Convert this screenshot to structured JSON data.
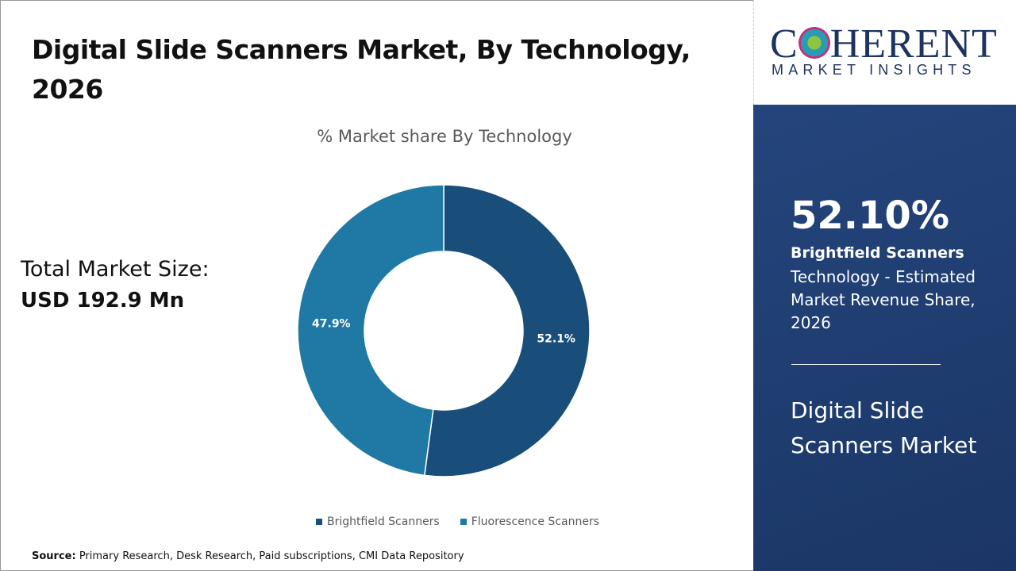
{
  "title": "Digital Slide Scanners Market, By Technology, 2026",
  "total_market": {
    "label": "Total Market Size:",
    "value": "USD 192.9 Mn"
  },
  "source": {
    "label": "Source:",
    "text": " Primary Research, Desk Research, Paid subscriptions, CMI Data Repository"
  },
  "logo": {
    "line1": "COHERENT",
    "line2": "MARKET INSIGHTS"
  },
  "panel": {
    "percent": "52.10%",
    "segment": "Brightfield Scanners",
    "description": "Technology - Estimated Market Revenue Share, 2026",
    "market": "Digital Slide Scanners Market"
  },
  "chart_data": {
    "type": "donut",
    "title": "% Market share By Technology",
    "categories": [
      "Brightfield Scanners",
      "Fluorescence Scanners"
    ],
    "values": [
      52.1,
      47.9
    ],
    "labels": [
      "52.1%",
      "47.9%"
    ],
    "colors": [
      "#1a4e7a",
      "#1f79a4"
    ],
    "legend": "bottom"
  }
}
